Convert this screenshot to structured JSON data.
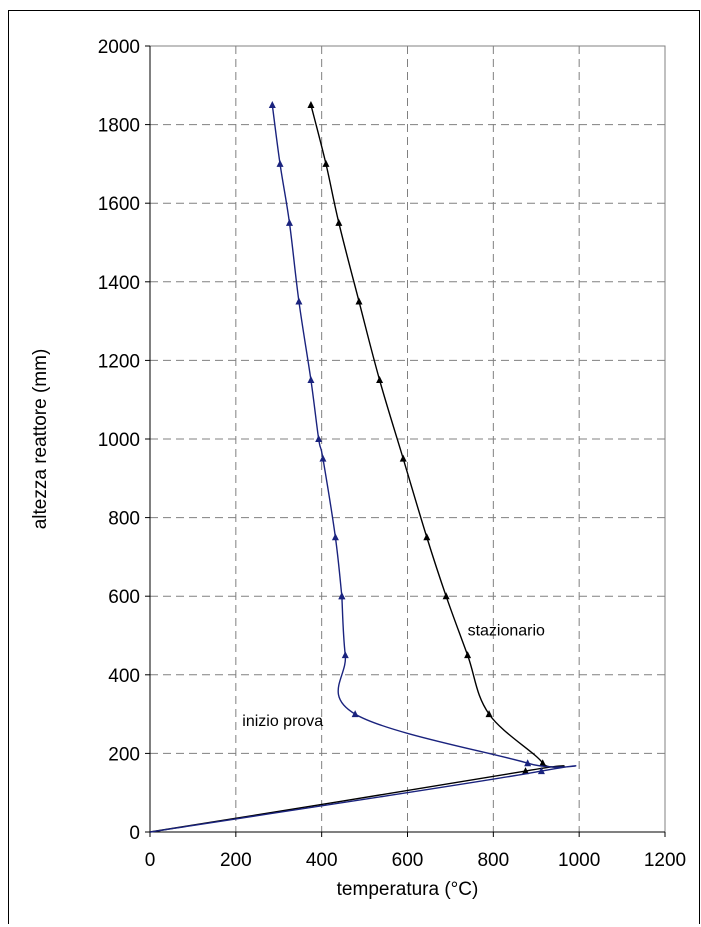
{
  "chart_data": {
    "type": "line",
    "title": "",
    "xlabel": "temperatura (°C)",
    "ylabel": "altezza reattore (mm)",
    "xlim": [
      0,
      1200
    ],
    "ylim": [
      0,
      2000
    ],
    "x_ticks": [
      "0",
      "200",
      "400",
      "600",
      "800",
      "1000",
      "1200"
    ],
    "y_ticks": [
      "0",
      "200",
      "400",
      "600",
      "800",
      "1000",
      "1200",
      "1400",
      "1600",
      "1800",
      "2000"
    ],
    "grid": "dashed",
    "legend": "none",
    "series": [
      {
        "name": "stazionario",
        "color": "#000000",
        "label_at": [
          740,
          500
        ],
        "x": [
          0,
          875,
          915,
          790,
          740,
          690,
          645,
          590,
          535,
          487,
          440,
          410,
          375
        ],
        "y": [
          0,
          155,
          175,
          300,
          450,
          600,
          750,
          950,
          1150,
          1350,
          1550,
          1700,
          1850
        ]
      },
      {
        "name": "inizio prova",
        "color": "#1a237e",
        "label_at": [
          215,
          270
        ],
        "x": [
          0,
          912,
          880,
          478,
          455,
          447,
          447,
          432,
          403,
          393,
          375,
          347,
          325,
          303,
          285
        ],
        "y": [
          0,
          155,
          175,
          300,
          450,
          600,
          600,
          750,
          950,
          1000,
          1150,
          1350,
          1550,
          1700,
          1850
        ]
      }
    ]
  }
}
